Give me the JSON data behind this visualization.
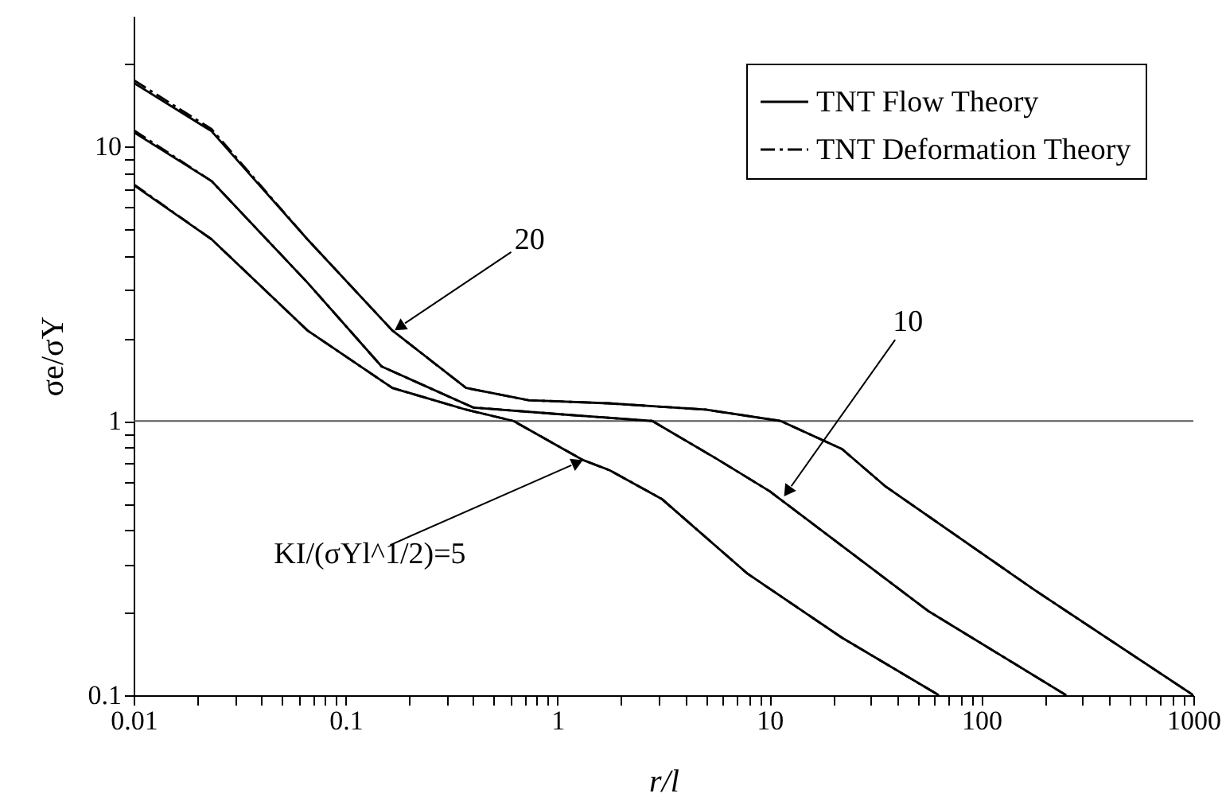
{
  "chart_data": {
    "type": "line",
    "xlabel": "r/l",
    "ylabel": "σe/σY",
    "log": "xy",
    "grid": false,
    "legend": "top right",
    "xlim": [
      0.01,
      1000
    ],
    "ylim": [
      0.1,
      30
    ],
    "xticks": [
      0.01,
      {
        "value": 0.02,
        "label": null
      },
      {
        "value": 0.03,
        "label": null
      },
      {
        "value": 0.04,
        "label": null
      },
      {
        "value": 0.05,
        "label": null
      },
      {
        "value": 0.06,
        "label": null
      },
      {
        "value": 0.07,
        "label": null
      },
      {
        "value": 0.08,
        "label": null
      },
      {
        "value": 0.09,
        "label": null
      },
      0.1,
      {
        "value": 0.2,
        "label": null
      },
      {
        "value": 0.3,
        "label": null
      },
      {
        "value": 0.4,
        "label": null
      },
      {
        "value": 0.5,
        "label": null
      },
      {
        "value": 0.6,
        "label": null
      },
      {
        "value": 0.7,
        "label": null
      },
      {
        "value": 0.8,
        "label": null
      },
      {
        "value": 0.9,
        "label": null
      },
      1,
      {
        "value": 2,
        "label": null
      },
      {
        "value": 3,
        "label": null
      },
      {
        "value": 4,
        "label": null
      },
      {
        "value": 5,
        "label": null
      },
      {
        "value": 6,
        "label": null
      },
      {
        "value": 7,
        "label": null
      },
      {
        "value": 8,
        "label": null
      },
      {
        "value": 9,
        "label": null
      },
      10,
      {
        "value": 20,
        "label": null
      },
      {
        "value": 30,
        "label": null
      },
      {
        "value": 40,
        "label": null
      },
      {
        "value": 50,
        "label": null
      },
      {
        "value": 60,
        "label": null
      },
      {
        "value": 70,
        "label": null
      },
      {
        "value": 80,
        "label": null
      },
      {
        "value": 90,
        "label": null
      },
      100,
      {
        "value": 200,
        "label": null
      },
      {
        "value": 300,
        "label": null
      },
      {
        "value": 400,
        "label": null
      },
      {
        "value": 500,
        "label": null
      },
      {
        "value": 600,
        "label": null
      },
      {
        "value": 700,
        "label": null
      },
      {
        "value": 800,
        "label": null
      },
      {
        "value": 900,
        "label": null
      },
      1000
    ],
    "yticks": [
      0.1,
      {
        "value": 0.2,
        "label": null
      },
      {
        "value": 0.3,
        "label": null
      },
      {
        "value": 0.4,
        "label": null
      },
      {
        "value": 0.5,
        "label": null
      },
      {
        "value": 0.6,
        "label": null
      },
      {
        "value": 0.7,
        "label": null
      },
      {
        "value": 0.8,
        "label": null
      },
      {
        "value": 0.9,
        "label": null
      },
      1,
      {
        "value": 2,
        "label": null
      },
      {
        "value": 3,
        "label": null
      },
      {
        "value": 4,
        "label": null
      },
      {
        "value": 5,
        "label": null
      },
      {
        "value": 6,
        "label": null
      },
      {
        "value": 7,
        "label": null
      },
      {
        "value": 8,
        "label": null
      },
      {
        "value": 9,
        "label": null
      },
      10,
      {
        "value": 20,
        "label": null
      }
    ],
    "series": [
      {
        "name": "TNT Flow Theory",
        "color": "#000000",
        "line_style": "solid",
        "x": [
          0.01,
          0.0233,
          0.066,
          0.166,
          0.37,
          0.73,
          1.74,
          5,
          11.3,
          22,
          35,
          178,
          1000
        ],
        "values": [
          17.1,
          11.4,
          4.6,
          2.14,
          1.32,
          1.19,
          1.16,
          1.1,
          1.0,
          0.79,
          0.58,
          0.242,
          0.1
        ]
      },
      {
        "color": "#000000",
        "line_style": "solid",
        "x": [
          0.01,
          0.0233,
          0.066,
          0.148,
          0.4,
          1,
          2.8,
          5.6,
          10,
          56,
          251
        ],
        "values": [
          11.3,
          7.5,
          3.2,
          1.58,
          1.12,
          1.06,
          1.0,
          0.73,
          0.555,
          0.203,
          0.1
        ]
      },
      {
        "color": "#000000",
        "line_style": "solid",
        "x": [
          0.01,
          0.0233,
          0.066,
          0.166,
          0.37,
          0.62,
          1.32,
          1.77,
          3.1,
          7.9,
          22,
          63
        ],
        "values": [
          7.25,
          4.6,
          2.14,
          1.32,
          1.1,
          1.0,
          0.72,
          0.66,
          0.52,
          0.277,
          0.162,
          0.1
        ]
      },
      {
        "name": "TNT Deformation Theory",
        "color": "#000000",
        "line_style": "dashdot",
        "x": [
          0.01,
          0.0233,
          0.066,
          0.166,
          0.37,
          0.73,
          1.74,
          5,
          11.3,
          22,
          35,
          178,
          1000
        ],
        "values": [
          17.5,
          11.6,
          4.6,
          2.14,
          1.32,
          1.19,
          1.16,
          1.1,
          1.0,
          0.79,
          0.58,
          0.242,
          0.1
        ]
      },
      {
        "color": "#000000",
        "line_style": "dashdot",
        "x": [
          0.01,
          0.0233,
          0.066,
          0.148,
          0.4,
          1,
          2.8,
          5.6,
          10,
          56,
          251
        ],
        "values": [
          11.5,
          7.5,
          3.2,
          1.58,
          1.12,
          1.06,
          1.0,
          0.73,
          0.555,
          0.203,
          0.1
        ]
      },
      {
        "color": "#000000",
        "line_style": "dashdot",
        "x": [
          0.01,
          0.0233,
          0.066,
          0.166,
          0.37,
          0.62,
          1.32,
          1.77,
          3.1,
          7.9,
          22,
          63
        ],
        "values": [
          7.3,
          4.6,
          2.14,
          1.32,
          1.1,
          1.0,
          0.72,
          0.66,
          0.52,
          0.277,
          0.162,
          0.1
        ]
      }
    ],
    "ref_lines": [
      {
        "axis": "y",
        "value": 1,
        "label": null,
        "color": "#555555"
      }
    ],
    "annotations": [
      {
        "text": "20",
        "x": 0.17,
        "y": 2.14
      },
      {
        "text": "10",
        "x": 11.7,
        "y": 0.53
      },
      {
        "text": "KI/(σYl^1/2)=5",
        "x": 1.32,
        "y": 0.72
      }
    ]
  }
}
